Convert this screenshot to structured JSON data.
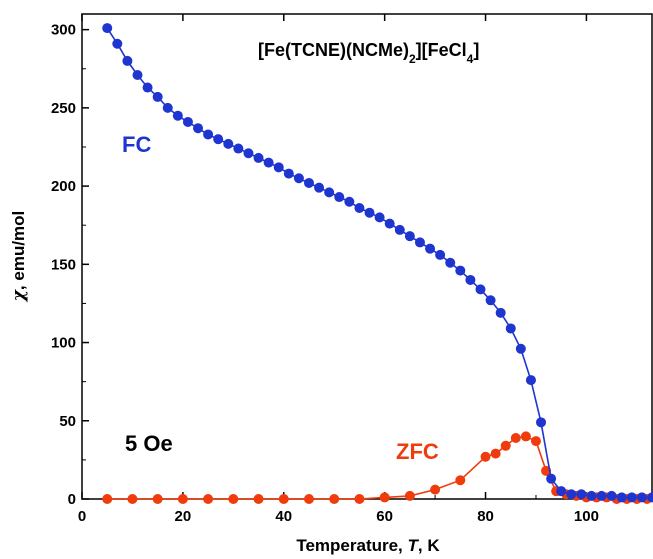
{
  "chart_data": {
    "type": "scatter",
    "title": {
      "prefix": "[Fe(TCNE)(NCMe)",
      "sub1": "2",
      "mid": "][FeCl",
      "sub2": "4",
      "suffix": "]"
    },
    "xlabel": {
      "main": "Temperature,  ",
      "italic": "T",
      "unit": ", K"
    },
    "ylabel": {
      "symbol": "χ",
      "rest": ", emu/mol"
    },
    "xlim": [
      0,
      113
    ],
    "ylim": [
      0,
      310
    ],
    "xticks": [
      0,
      20,
      40,
      60,
      80,
      100
    ],
    "yticks": [
      0,
      50,
      100,
      150,
      200,
      250,
      300
    ],
    "grid": false,
    "annotations": {
      "fc": "FC",
      "zfc": "ZFC",
      "field": "5 Oe"
    },
    "series": [
      {
        "name": "FC",
        "color": "#1f35d0",
        "x": [
          5,
          7,
          9,
          11,
          13,
          15,
          17,
          19,
          21,
          23,
          25,
          27,
          29,
          31,
          33,
          35,
          37,
          39,
          41,
          43,
          45,
          47,
          49,
          51,
          53,
          55,
          57,
          59,
          61,
          63,
          65,
          67,
          69,
          71,
          73,
          75,
          77,
          79,
          81,
          83,
          85,
          87,
          89,
          91,
          93,
          95,
          97,
          99,
          101,
          103,
          105,
          107,
          109,
          111,
          113
        ],
        "y": [
          301,
          291,
          280,
          271,
          263,
          257,
          250,
          245,
          241,
          237,
          233,
          230,
          227,
          224,
          221,
          218,
          215,
          212,
          208,
          205,
          202,
          199,
          196,
          193,
          190,
          186,
          183,
          180,
          176,
          172,
          168,
          164,
          160,
          156,
          151,
          146,
          140,
          134,
          127,
          119,
          109,
          96,
          76,
          49,
          13,
          5,
          3,
          3,
          2,
          2,
          2,
          1,
          1,
          1,
          1
        ]
      },
      {
        "name": "ZFC",
        "color": "#f03c0c",
        "x": [
          5,
          10,
          15,
          20,
          25,
          30,
          35,
          40,
          45,
          50,
          55,
          60,
          65,
          70,
          75,
          80,
          82,
          84,
          86,
          88,
          90,
          92,
          94,
          96,
          98,
          100,
          102,
          104,
          106,
          108,
          110,
          112
        ],
        "y": [
          0,
          0,
          0,
          0,
          0,
          0,
          0,
          0,
          0,
          0,
          0,
          1,
          2,
          6,
          12,
          27,
          29,
          34,
          39,
          40,
          37,
          18,
          5,
          3,
          2,
          1,
          1,
          1,
          0,
          0,
          0,
          0
        ]
      }
    ]
  }
}
